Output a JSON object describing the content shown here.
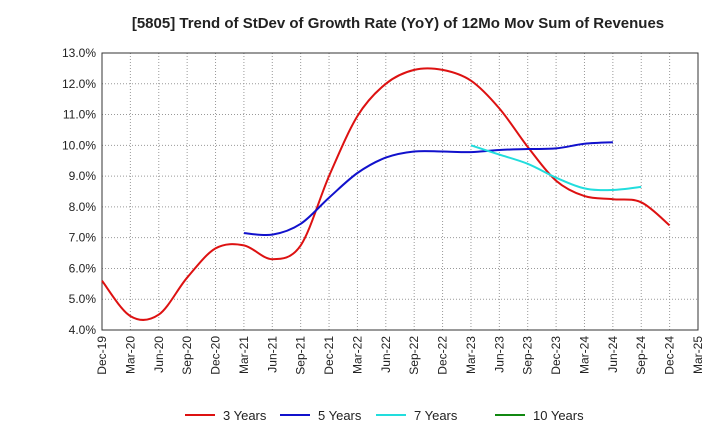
{
  "chart_data": {
    "type": "line",
    "title": "[5805]  Trend of StDev of Growth Rate (YoY) of 12Mo Mov Sum of Revenues",
    "xlabel": "",
    "ylabel": "",
    "ylim": [
      4.0,
      13.0
    ],
    "yticks": [
      4.0,
      5.0,
      6.0,
      7.0,
      8.0,
      9.0,
      10.0,
      11.0,
      12.0,
      13.0
    ],
    "ytick_labels": [
      "4.0%",
      "5.0%",
      "6.0%",
      "7.0%",
      "8.0%",
      "9.0%",
      "10.0%",
      "11.0%",
      "12.0%",
      "13.0%"
    ],
    "x_categories": [
      "Dec-19",
      "Mar-20",
      "Jun-20",
      "Sep-20",
      "Dec-20",
      "Mar-21",
      "Jun-21",
      "Sep-21",
      "Dec-21",
      "Mar-22",
      "Jun-22",
      "Sep-22",
      "Dec-22",
      "Mar-23",
      "Jun-23",
      "Sep-23",
      "Dec-23",
      "Mar-24",
      "Jun-24",
      "Sep-24",
      "Dec-24",
      "Mar-25"
    ],
    "grid": "dotted",
    "legend_position": "bottom",
    "series": [
      {
        "name": "3 Years",
        "color": "#dd1111",
        "start_index": 0,
        "values": [
          5.6,
          4.45,
          4.5,
          5.7,
          6.65,
          6.75,
          6.3,
          6.75,
          9.0,
          10.95,
          12.0,
          12.45,
          12.45,
          12.1,
          11.2,
          9.95,
          8.85,
          8.35,
          8.25,
          8.15,
          7.4
        ]
      },
      {
        "name": "5 Years",
        "color": "#1111cc",
        "start_index": 5,
        "values": [
          7.15,
          7.1,
          7.45,
          8.3,
          9.1,
          9.6,
          9.8,
          9.8,
          9.78,
          9.85,
          9.88,
          9.9,
          10.05,
          10.1
        ]
      },
      {
        "name": "7 Years",
        "color": "#22dddd",
        "start_index": 13,
        "values": [
          10.0,
          9.7,
          9.4,
          8.95,
          8.6,
          8.55,
          8.65
        ]
      },
      {
        "name": "10 Years",
        "color": "#118811",
        "start_index": 0,
        "values": []
      }
    ]
  }
}
